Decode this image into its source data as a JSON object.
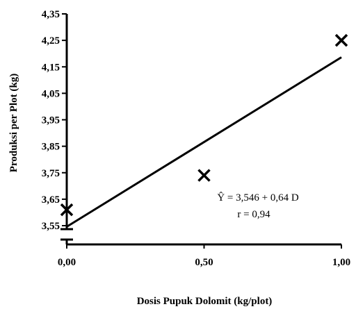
{
  "chart_data": {
    "type": "scatter",
    "xlabel": "Dosis Pupuk Dolomit (kg/plot)",
    "ylabel": "Produksi per Plot (kg)",
    "x_ticks": [
      "0,00",
      "0,50",
      "1,00"
    ],
    "x_tick_values": [
      0,
      0.5,
      1
    ],
    "y_ticks": [
      "3,55",
      "3,65",
      "3,75",
      "3,85",
      "3,95",
      "4,05",
      "4,15",
      "4,25",
      "4,35"
    ],
    "y_tick_values": [
      3.55,
      3.65,
      3.75,
      3.85,
      3.95,
      4.05,
      4.15,
      4.25,
      4.35
    ],
    "xlim": [
      0,
      1
    ],
    "ylim": [
      3.55,
      4.35
    ],
    "axis_break": true,
    "points": [
      {
        "x": 0,
        "y": 3.61
      },
      {
        "x": 0.5,
        "y": 3.74
      },
      {
        "x": 1,
        "y": 4.25
      }
    ],
    "trendline": {
      "intercept": 3.546,
      "slope": 0.64,
      "x_range": [
        0,
        1
      ]
    },
    "annotation": {
      "equation": "Ŷ = 3,546 + 0,64 D",
      "r": "r = 0,94"
    },
    "grid": false,
    "legend": "none"
  }
}
